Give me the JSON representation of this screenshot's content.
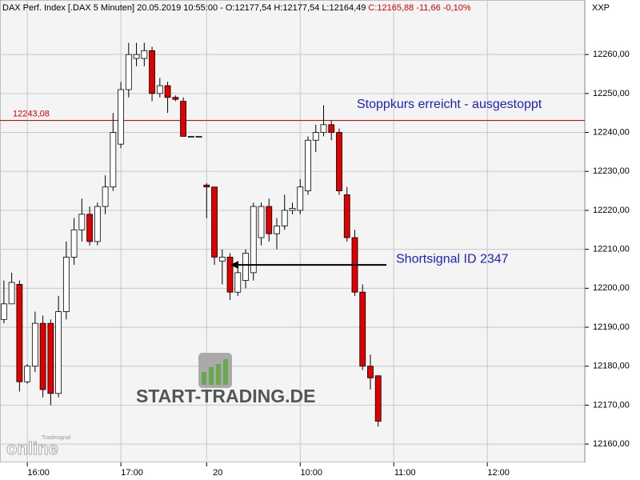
{
  "chart_data": {
    "type": "candlestick",
    "title": "DAX Perf. Index [.DAX  5 Minuten] 20.05.2019 10:55:00 - O:12177,54 H:12177,54 L:12164,49",
    "title_change": "C:12165,88 -11,66 -0,10%",
    "y_axis_label": "XXP",
    "categories": [
      null,
      null,
      null,
      "16:00",
      null,
      null,
      null,
      null,
      null,
      null,
      null,
      null,
      null,
      null,
      null,
      "17:00",
      null,
      null,
      null,
      null,
      null,
      null,
      null,
      null,
      null,
      null,
      "20",
      null,
      null,
      null,
      null,
      null,
      null,
      null,
      null,
      null,
      null,
      null,
      "10:00",
      null,
      null,
      null,
      null,
      null,
      null,
      null,
      null,
      null,
      null,
      null,
      "11:00",
      null,
      null,
      null,
      null,
      null,
      null,
      null,
      null,
      null,
      null,
      null,
      "12:00",
      null,
      null,
      null,
      null,
      null,
      null,
      null,
      null,
      null,
      null,
      null,
      null
    ],
    "open": [
      12192,
      12196,
      12201,
      12176,
      12180,
      12191,
      12191,
      12173,
      12194,
      12208,
      12215,
      12219,
      12212,
      12221,
      12226,
      12237,
      12251,
      12259,
      12259,
      12261,
      12250,
      12252,
      12249,
      12248,
      12239,
      12239,
      12226.5,
      12226,
      12207,
      12208,
      12199,
      12202,
      12204,
      12213,
      12221,
      12214,
      12216,
      12220,
      12220,
      12225,
      12238,
      12240,
      12242,
      12240,
      12224,
      12213,
      12199,
      12180,
      12177.54,
      null,
      null,
      null,
      null,
      null,
      null,
      null,
      null,
      null,
      null,
      null,
      null,
      null,
      null,
      null,
      null,
      null,
      null,
      null,
      null,
      null,
      null,
      null,
      null,
      null,
      null
    ],
    "high": [
      12202,
      12204,
      12202,
      12180.5,
      12194,
      12193,
      12192,
      12198,
      12212,
      12218,
      12223,
      12221,
      12222,
      12229,
      12245,
      12253,
      12263,
      12263,
      12263,
      12262,
      12254,
      12253,
      12249.5,
      12249,
      12239,
      12239,
      12227,
      12226,
      12210,
      12209,
      12205,
      12210,
      12222,
      12222,
      12223,
      12218,
      12224,
      12222,
      12228,
      12239,
      12242,
      12247,
      12243,
      12241,
      12226,
      12215,
      12201,
      12183,
      12177.54,
      null,
      null,
      null,
      null,
      null,
      null,
      null,
      null,
      null,
      null,
      null,
      null,
      null,
      null,
      null,
      null,
      null,
      null,
      null,
      null,
      null,
      null,
      null,
      null,
      null,
      null
    ],
    "low": [
      12191,
      12196,
      12173.5,
      12175.5,
      12178.5,
      12172,
      12170,
      12172,
      12192,
      12206,
      12212,
      12211,
      12211,
      12219,
      12225,
      12236,
      12249,
      12257,
      12257,
      12248,
      12249,
      12245,
      12248,
      12239,
      12239,
      12239,
      12218,
      12206,
      12201,
      12197,
      12198,
      12200,
      12202,
      12211,
      12212,
      12210,
      12215,
      12219,
      12219,
      12224,
      12235,
      12239,
      12238,
      12224,
      12212,
      12198,
      12179,
      12174,
      12164.49,
      null,
      null,
      null,
      null,
      null,
      null,
      null,
      null,
      null,
      null,
      null,
      null,
      null,
      null,
      null,
      null,
      null,
      null,
      null,
      null,
      null,
      null,
      null,
      null,
      null,
      null
    ],
    "close": [
      12196,
      12201.5,
      12176,
      12180,
      12191,
      12174,
      12173,
      12194,
      12208,
      12215,
      12219,
      12212,
      12221,
      12226,
      12240,
      12251,
      12260,
      12260,
      12261,
      12250,
      12252,
      12249,
      12248.5,
      12239,
      12239,
      12239,
      12226,
      12208,
      12208,
      12199,
      12204,
      12209,
      12221,
      12221,
      12214,
      12216,
      12220,
      12220.5,
      12226,
      12238,
      12240,
      12242,
      12240,
      12225,
      12213,
      12199,
      12180,
      12177,
      12165.88,
      null,
      null,
      null,
      null,
      null,
      null,
      null,
      null,
      null,
      null,
      null,
      null,
      null,
      null,
      null,
      null,
      null,
      null,
      null,
      null,
      null,
      null,
      null,
      null,
      null,
      null
    ],
    "up_color": "#ffffff",
    "down_color": "#e00000",
    "ylim": [
      12155.3,
      12274
    ],
    "yticks": [
      {
        "value": 12160,
        "label": "12160,00"
      },
      {
        "value": 12170,
        "label": "12170,00"
      },
      {
        "value": 12180,
        "label": "12180,00"
      },
      {
        "value": 12190,
        "label": "12190,00"
      },
      {
        "value": 12200,
        "label": "12200,00"
      },
      {
        "value": 12210,
        "label": "12210,00"
      },
      {
        "value": 12220,
        "label": "12220,00"
      },
      {
        "value": 12230,
        "label": "12230,00"
      },
      {
        "value": 12240,
        "label": "12240,00"
      },
      {
        "value": 12250,
        "label": "12250,00"
      },
      {
        "value": 12260,
        "label": "12260,00"
      }
    ],
    "grid": true,
    "hline": {
      "value": 12243.08,
      "label": "12243,08",
      "color": "#e00000"
    },
    "annotations": [
      {
        "text": "Stoppkurs erreicht - ausgestoppt"
      },
      {
        "text": "Shortsignal ID 2347",
        "value": 12206
      }
    ],
    "watermark": "START-TRADING.DE",
    "logo": {
      "small": "Tradesignal",
      "big": "online"
    }
  }
}
